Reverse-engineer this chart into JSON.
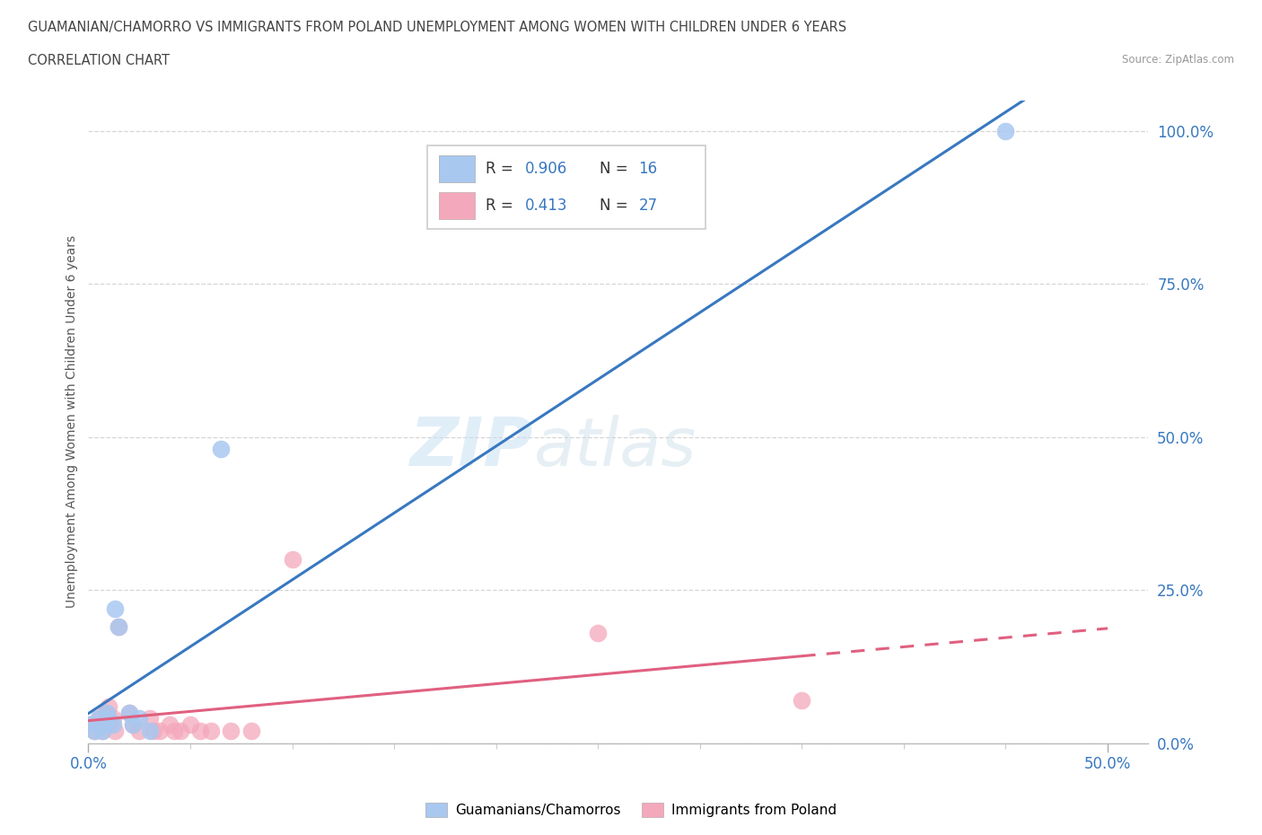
{
  "title_line1": "GUAMANIAN/CHAMORRO VS IMMIGRANTS FROM POLAND UNEMPLOYMENT AMONG WOMEN WITH CHILDREN UNDER 6 YEARS",
  "title_line2": "CORRELATION CHART",
  "source": "Source: ZipAtlas.com",
  "ylabel": "Unemployment Among Women with Children Under 6 years",
  "legend_label1": "Guamanians/Chamorros",
  "legend_label2": "Immigrants from Poland",
  "legend_r1": "0.906",
  "legend_n1": "16",
  "legend_r2": "0.413",
  "legend_n2": "27",
  "watermark_zip": "ZIP",
  "watermark_atlas": "atlas",
  "color_blue": "#a8c8f0",
  "color_pink": "#f4a8bc",
  "line_color_blue": "#3878c0",
  "line_color_pink": "#e06080",
  "scatter_blue_x": [
    0.0,
    0.003,
    0.005,
    0.007,
    0.008,
    0.009,
    0.01,
    0.012,
    0.013,
    0.015,
    0.02,
    0.022,
    0.025,
    0.03,
    0.065,
    0.45
  ],
  "scatter_blue_y": [
    0.03,
    0.02,
    0.04,
    0.02,
    0.03,
    0.05,
    0.04,
    0.03,
    0.22,
    0.19,
    0.05,
    0.03,
    0.04,
    0.02,
    0.48,
    1.0
  ],
  "scatter_pink_x": [
    0.0,
    0.003,
    0.005,
    0.007,
    0.008,
    0.01,
    0.01,
    0.012,
    0.013,
    0.015,
    0.02,
    0.022,
    0.025,
    0.03,
    0.032,
    0.035,
    0.04,
    0.042,
    0.045,
    0.05,
    0.055,
    0.06,
    0.07,
    0.08,
    0.1,
    0.25,
    0.35
  ],
  "scatter_pink_y": [
    0.03,
    0.02,
    0.04,
    0.02,
    0.05,
    0.03,
    0.06,
    0.04,
    0.02,
    0.19,
    0.05,
    0.03,
    0.02,
    0.04,
    0.02,
    0.02,
    0.03,
    0.02,
    0.02,
    0.03,
    0.02,
    0.02,
    0.02,
    0.02,
    0.3,
    0.18,
    0.07
  ],
  "xlim": [
    0.0,
    0.52
  ],
  "ylim": [
    0.0,
    1.05
  ],
  "ytick_vals": [
    0.0,
    0.25,
    0.5,
    0.75,
    1.0
  ],
  "ytick_labels": [
    "0.0%",
    "25.0%",
    "50.0%",
    "75.0%",
    "100.0%"
  ],
  "xtick_major": [
    0.0,
    0.5
  ],
  "xtick_minor": [
    0.05,
    0.1,
    0.15,
    0.2,
    0.25,
    0.3,
    0.35,
    0.4,
    0.45
  ],
  "xtick_labels": [
    "0.0%",
    "50.0%"
  ]
}
